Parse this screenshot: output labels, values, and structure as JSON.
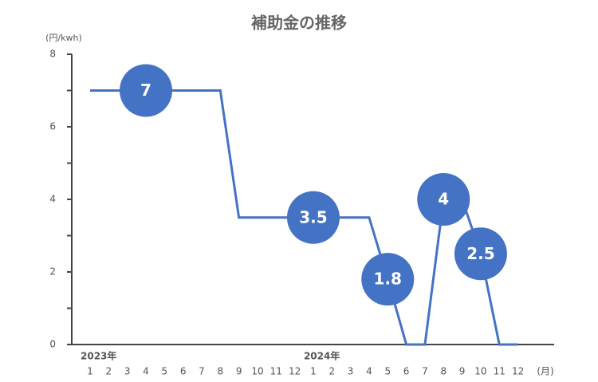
{
  "chart_data": {
    "type": "line",
    "title": "補助金の推移",
    "y_label": "(円/kwh)",
    "x_label": "(月)",
    "years": [
      "2023年",
      "2024年"
    ],
    "categories": [
      "1",
      "2",
      "3",
      "4",
      "5",
      "6",
      "7",
      "8",
      "9",
      "10",
      "11",
      "12",
      "1",
      "2",
      "3",
      "4",
      "5",
      "6",
      "7",
      "8",
      "9",
      "10",
      "11",
      "12"
    ],
    "series": [
      {
        "name": "補助金",
        "color": "#4472c4",
        "values": [
          7,
          7,
          7,
          7,
          7,
          7,
          7,
          7,
          3.5,
          3.5,
          3.5,
          3.5,
          3.5,
          3.5,
          3.5,
          3.5,
          1.8,
          0,
          0,
          4,
          4,
          2.5,
          0,
          0
        ],
        "value_labels": [
          null,
          null,
          null,
          "7",
          null,
          null,
          null,
          null,
          null,
          null,
          null,
          null,
          "3.5",
          null,
          null,
          null,
          "1.8",
          null,
          null,
          "4",
          null,
          "2.5",
          null,
          null
        ]
      }
    ],
    "ylim": [
      0,
      8
    ],
    "yticks": [
      0,
      2,
      4,
      6,
      8
    ],
    "yminor": [
      1,
      3,
      5,
      7
    ]
  }
}
